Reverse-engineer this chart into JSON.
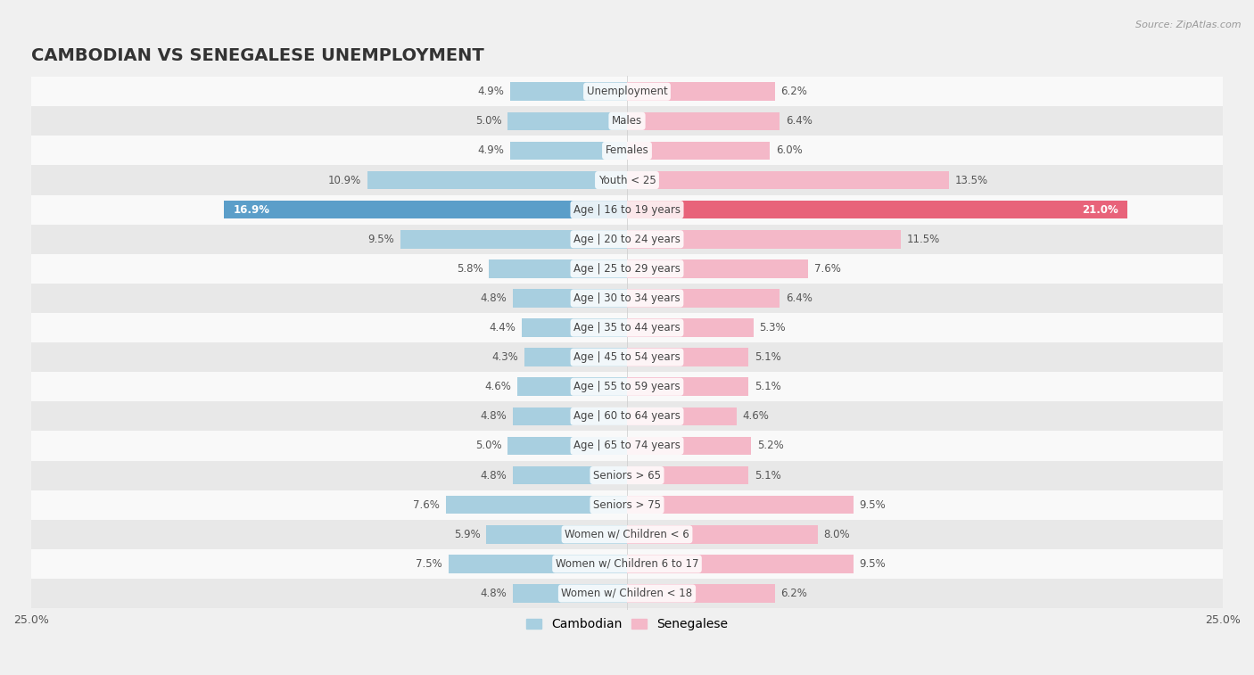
{
  "title": "CAMBODIAN VS SENEGALESE UNEMPLOYMENT",
  "source": "Source: ZipAtlas.com",
  "categories": [
    "Unemployment",
    "Males",
    "Females",
    "Youth < 25",
    "Age | 16 to 19 years",
    "Age | 20 to 24 years",
    "Age | 25 to 29 years",
    "Age | 30 to 34 years",
    "Age | 35 to 44 years",
    "Age | 45 to 54 years",
    "Age | 55 to 59 years",
    "Age | 60 to 64 years",
    "Age | 65 to 74 years",
    "Seniors > 65",
    "Seniors > 75",
    "Women w/ Children < 6",
    "Women w/ Children 6 to 17",
    "Women w/ Children < 18"
  ],
  "cambodian": [
    4.9,
    5.0,
    4.9,
    10.9,
    16.9,
    9.5,
    5.8,
    4.8,
    4.4,
    4.3,
    4.6,
    4.8,
    5.0,
    4.8,
    7.6,
    5.9,
    7.5,
    4.8
  ],
  "senegalese": [
    6.2,
    6.4,
    6.0,
    13.5,
    21.0,
    11.5,
    7.6,
    6.4,
    5.3,
    5.1,
    5.1,
    4.6,
    5.2,
    5.1,
    9.5,
    8.0,
    9.5,
    6.2
  ],
  "cambodian_color": "#a8cfe0",
  "senegalese_color": "#f4b8c8",
  "highlight_cambodian_color": "#5b9ec9",
  "highlight_senegalese_color": "#e8637a",
  "highlight_rows": [
    4
  ],
  "bar_height": 0.62,
  "xlim": 25,
  "bg_color": "#f0f0f0",
  "row_light": "#f9f9f9",
  "row_dark": "#e8e8e8",
  "legend_cambodian": "Cambodian",
  "legend_senegalese": "Senegalese",
  "label_fontsize": 8.5,
  "title_fontsize": 14,
  "source_fontsize": 8
}
